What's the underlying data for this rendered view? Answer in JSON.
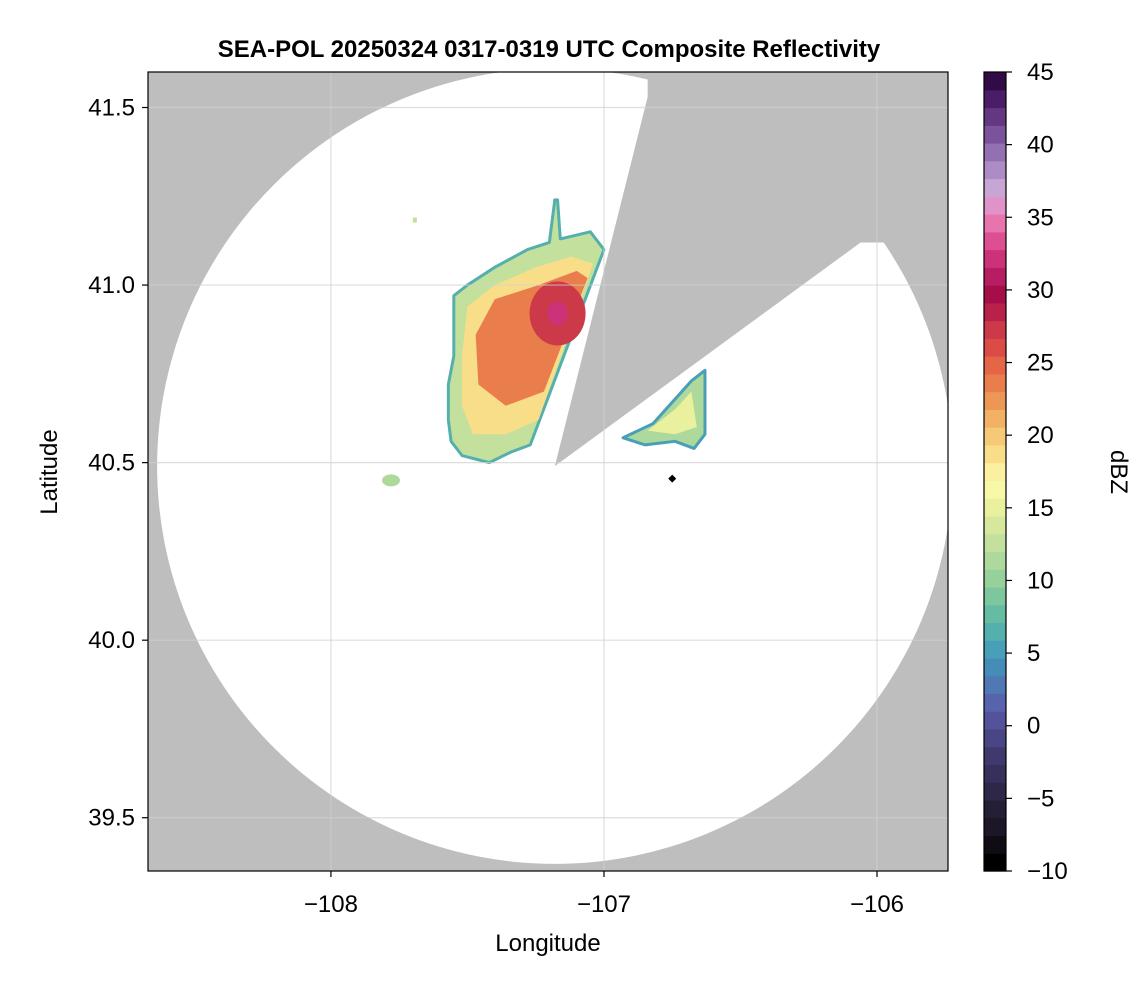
{
  "title": "SEA-POL 20250324 0317-0319 UTC Composite Reflectivity",
  "colors": {
    "background_outside": "#bebebe",
    "coverage_fill": "#ffffff",
    "grid": "#d0d0d0",
    "axis": "#000000"
  },
  "chart_data": {
    "type": "heatmap",
    "title": "SEA-POL 20250324 0317-0319 UTC Composite Reflectivity",
    "xlabel": "Longitude",
    "ylabel": "Latitude",
    "xlim": [
      -108.67,
      -105.74
    ],
    "ylim": [
      39.35,
      41.6
    ],
    "xticks": [
      -108,
      -107,
      -106
    ],
    "xtick_labels": [
      "−108",
      "−107",
      "−106"
    ],
    "yticks": [
      39.5,
      40.0,
      40.5,
      41.0,
      41.5
    ],
    "ytick_labels": [
      "39.5",
      "40.0",
      "40.5",
      "41.0",
      "41.5"
    ],
    "grid": true,
    "radar": {
      "center_lon": -107.18,
      "center_lat": 40.49,
      "range_lat": 1.12,
      "blocked_sectors": [
        {
          "from_lon": -106.84,
          "from_lat": 41.53,
          "to_lon": -106.06,
          "to_lat": 41.12,
          "label": "beam blockage"
        }
      ]
    },
    "marker": {
      "lon": -106.75,
      "lat": 40.455,
      "shape": "diamond"
    },
    "echo_regions": [
      {
        "name": "main",
        "lon_range": [
          -108.55,
          -107.0
        ],
        "lat_range": [
          40.52,
          41.24
        ],
        "peak_dbz": 32,
        "peak_lon": -107.17,
        "peak_lat": 40.92
      },
      {
        "name": "east",
        "lon_range": [
          -106.92,
          -106.63
        ],
        "lat_range": [
          40.55,
          40.76
        ],
        "peak_dbz": 16
      },
      {
        "name": "west small",
        "lon_range": [
          -107.82,
          -107.74
        ],
        "lat_range": [
          40.43,
          40.47
        ],
        "peak_dbz": 11
      },
      {
        "name": "north speck",
        "lon_range": [
          -107.7,
          -107.68
        ],
        "lat_range": [
          41.17,
          41.19
        ],
        "peak_dbz": 12
      }
    ],
    "colorbar": {
      "label": "dBZ",
      "min": -10,
      "max": 45,
      "ticks": [
        -10,
        -5,
        0,
        5,
        10,
        15,
        20,
        25,
        30,
        35,
        40,
        45
      ],
      "tick_labels": [
        "−10",
        "−5",
        "0",
        "5",
        "10",
        "15",
        "20",
        "25",
        "30",
        "35",
        "40",
        "45"
      ],
      "colors": [
        "#000000",
        "#100c14",
        "#1c1626",
        "#251f36",
        "#2e2747",
        "#37305a",
        "#40396e",
        "#4a4584",
        "#53529a",
        "#5763ad",
        "#4f78b5",
        "#468cb9",
        "#4a9fb8",
        "#55b0ad",
        "#66bca3",
        "#7ec79e",
        "#96d19c",
        "#add99c",
        "#c3e09d",
        "#d7e89d",
        "#e9f19e",
        "#f8f8a8",
        "#fbf0a0",
        "#f9de8a",
        "#f6c976",
        "#f2b164",
        "#ed9756",
        "#e97d4b",
        "#e56547",
        "#dc4c46",
        "#cc3949",
        "#b82149",
        "#a50e48",
        "#b71d62",
        "#cc3278",
        "#de4e92",
        "#e774ad",
        "#df93c9",
        "#c7a5d5",
        "#ad8cc6",
        "#9370b2",
        "#7b539c",
        "#633782",
        "#4a1d66",
        "#310a48"
      ]
    }
  }
}
